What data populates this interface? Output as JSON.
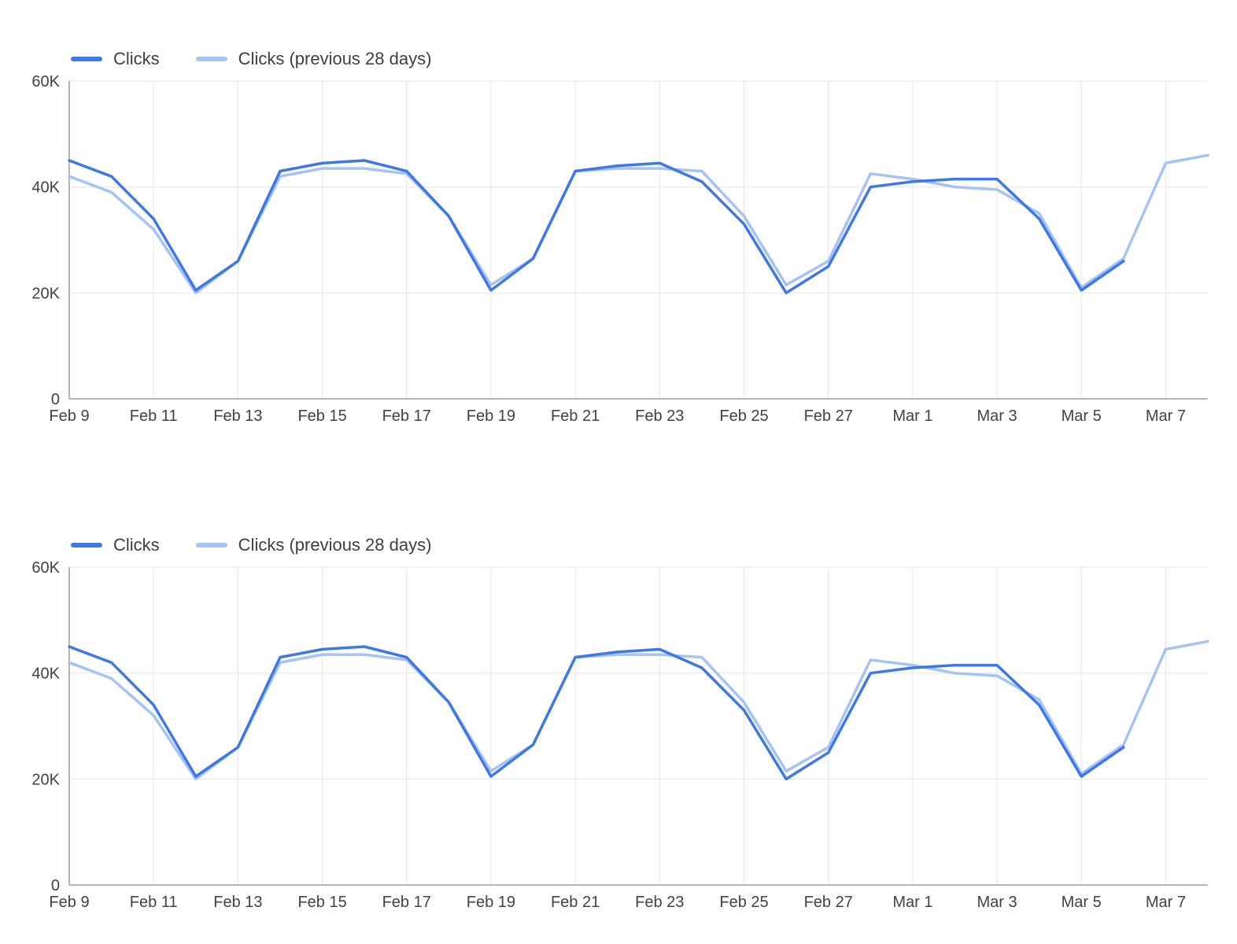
{
  "page": {
    "background": "#ffffff",
    "text_color": "#424242",
    "gridline_color": "#e6e6e6",
    "axis_color": "#9e9e9e"
  },
  "chart_data": [
    {
      "type": "line",
      "title": "",
      "xlabel": "",
      "ylabel": "",
      "grid": true,
      "legend_position": "top-left",
      "ylim": [
        0,
        60000
      ],
      "yticks": {
        "values": [
          0,
          20000,
          40000,
          60000
        ],
        "labels": [
          "0",
          "20K",
          "40K",
          "60K"
        ]
      },
      "xtick_indices": [
        0,
        2,
        4,
        6,
        8,
        10,
        12,
        14,
        16,
        18,
        20,
        22,
        24,
        26
      ],
      "categories": [
        "Feb 9",
        "Feb 10",
        "Feb 11",
        "Feb 12",
        "Feb 13",
        "Feb 14",
        "Feb 15",
        "Feb 16",
        "Feb 17",
        "Feb 18",
        "Feb 19",
        "Feb 20",
        "Feb 21",
        "Feb 22",
        "Feb 23",
        "Feb 24",
        "Feb 25",
        "Feb 26",
        "Feb 27",
        "Feb 28",
        "Mar 1",
        "Mar 2",
        "Mar 3",
        "Mar 4",
        "Mar 5",
        "Mar 6",
        "Mar 7",
        "Mar 8"
      ],
      "series": [
        {
          "name": "Clicks",
          "color": "#3d78e8",
          "values": [
            45000,
            42000,
            34000,
            20500,
            26000,
            43000,
            44500,
            45000,
            43000,
            34500,
            20500,
            26500,
            43000,
            44000,
            44500,
            41000,
            33000,
            20000,
            25000,
            40000,
            41000,
            41500,
            41500,
            34000,
            20500,
            26000,
            null,
            null
          ]
        },
        {
          "name": "Clicks (previous 28 days)",
          "color": "#a5c3f6",
          "values": [
            42000,
            39000,
            32000,
            20000,
            26000,
            42000,
            43500,
            43500,
            42500,
            34500,
            21500,
            26500,
            43000,
            43500,
            43500,
            43000,
            34500,
            21500,
            26000,
            42500,
            41500,
            40000,
            39500,
            35000,
            21000,
            26500,
            44500,
            46000
          ]
        }
      ]
    },
    {
      "type": "line",
      "title": "",
      "xlabel": "",
      "ylabel": "",
      "grid": true,
      "legend_position": "top-left",
      "ylim": [
        0,
        60000
      ],
      "yticks": {
        "values": [
          0,
          20000,
          40000,
          60000
        ],
        "labels": [
          "0",
          "20K",
          "40K",
          "60K"
        ]
      },
      "xtick_indices": [
        0,
        2,
        4,
        6,
        8,
        10,
        12,
        14,
        16,
        18,
        20,
        22,
        24,
        26
      ],
      "categories": [
        "Feb 9",
        "Feb 10",
        "Feb 11",
        "Feb 12",
        "Feb 13",
        "Feb 14",
        "Feb 15",
        "Feb 16",
        "Feb 17",
        "Feb 18",
        "Feb 19",
        "Feb 20",
        "Feb 21",
        "Feb 22",
        "Feb 23",
        "Feb 24",
        "Feb 25",
        "Feb 26",
        "Feb 27",
        "Feb 28",
        "Mar 1",
        "Mar 2",
        "Mar 3",
        "Mar 4",
        "Mar 5",
        "Mar 6",
        "Mar 7",
        "Mar 8"
      ],
      "series": [
        {
          "name": "Clicks",
          "color": "#3d78e8",
          "values": [
            45000,
            42000,
            34000,
            20500,
            26000,
            43000,
            44500,
            45000,
            43000,
            34500,
            20500,
            26500,
            43000,
            44000,
            44500,
            41000,
            33000,
            20000,
            25000,
            40000,
            41000,
            41500,
            41500,
            34000,
            20500,
            26000,
            null,
            null
          ]
        },
        {
          "name": "Clicks (previous 28 days)",
          "color": "#a5c3f6",
          "values": [
            42000,
            39000,
            32000,
            20000,
            26000,
            42000,
            43500,
            43500,
            42500,
            34500,
            21500,
            26500,
            43000,
            43500,
            43500,
            43000,
            34500,
            21500,
            26000,
            42500,
            41500,
            40000,
            39500,
            35000,
            21000,
            26500,
            44500,
            46000
          ]
        }
      ]
    }
  ]
}
